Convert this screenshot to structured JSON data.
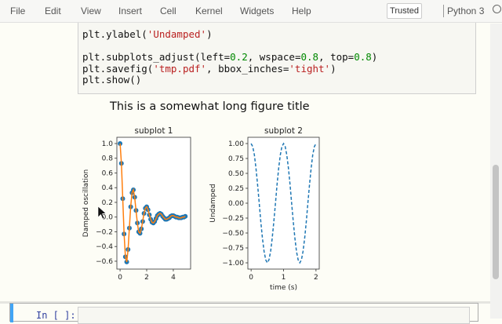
{
  "menubar": {
    "items": [
      "File",
      "Edit",
      "View",
      "Insert",
      "Cell",
      "Kernel",
      "Widgets",
      "Help"
    ],
    "trusted_label": "Trusted",
    "kernel_name": "Python 3"
  },
  "code_cell": {
    "lines": [
      [
        {
          "t": "plt.ylabel("
        },
        {
          "t": "'Undamped'",
          "c": "s"
        },
        {
          "t": ")"
        }
      ],
      [],
      [
        {
          "t": "plt.subplots_adjust(left="
        },
        {
          "t": "0.2",
          "c": "n"
        },
        {
          "t": ", wspace="
        },
        {
          "t": "0.8",
          "c": "n"
        },
        {
          "t": ", top="
        },
        {
          "t": "0.8",
          "c": "n"
        },
        {
          "t": ")"
        }
      ],
      [
        {
          "t": "plt.savefig("
        },
        {
          "t": "'tmp.pdf'",
          "c": "s"
        },
        {
          "t": ", bbox_inches="
        },
        {
          "t": "'tight'",
          "c": "s"
        },
        {
          "t": ")"
        }
      ],
      [
        {
          "t": "plt.show()"
        }
      ]
    ]
  },
  "new_cell": {
    "prompt": "In [ ]:"
  },
  "figure_title": "This is a somewhat long figure title",
  "chart_data": [
    {
      "type": "line",
      "title": "subplot 1",
      "xlabel": "",
      "ylabel": "Damped oscillation",
      "xlim": [
        -0.24,
        5.3
      ],
      "ylim": [
        -0.707,
        1.085
      ],
      "xticks": [
        0,
        2,
        4
      ],
      "yticks": [
        1.0,
        0.8,
        0.6,
        0.4,
        0.2,
        0.0,
        -0.2,
        -0.4,
        -0.6
      ],
      "ytick_labels": [
        "1.0",
        "0.8",
        "0.6",
        "0.4",
        "0.2",
        "0.0",
        "−0.2",
        "−0.4",
        "−0.6"
      ],
      "markers": true,
      "line_color": "#ff7f0e",
      "marker_color": "#1f77b4",
      "x_start": 0,
      "x_step": 0.1,
      "values": [
        1.0,
        0.73,
        0.25,
        -0.23,
        -0.54,
        -0.61,
        -0.44,
        -0.15,
        0.14,
        0.33,
        0.37,
        0.27,
        0.09,
        -0.08,
        -0.2,
        -0.22,
        -0.16,
        -0.06,
        0.05,
        0.12,
        0.14,
        0.1,
        0.03,
        -0.03,
        -0.07,
        -0.08,
        -0.06,
        -0.02,
        0.02,
        0.04,
        0.05,
        0.04,
        0.01,
        -0.01,
        -0.03,
        -0.03,
        -0.02,
        -0.01,
        0.01,
        0.02,
        0.02,
        0.01,
        0.0,
        0.0,
        -0.01,
        -0.01,
        -0.01,
        0.0,
        0.0,
        0.01
      ]
    },
    {
      "type": "line",
      "title": "subplot 2",
      "xlabel": "time (s)",
      "ylabel": "Undamped",
      "xlim": [
        -0.1,
        2.1
      ],
      "ylim": [
        -1.105,
        1.105
      ],
      "xticks": [
        0,
        1,
        2
      ],
      "yticks": [
        1.0,
        0.75,
        0.5,
        0.25,
        0.0,
        -0.25,
        -0.5,
        -0.75,
        -1.0
      ],
      "ytick_labels": [
        "1.00",
        "0.75",
        "0.50",
        "0.25",
        "0.00",
        "−0.25",
        "−0.50",
        "−0.75",
        "−1.00"
      ],
      "markers": false,
      "dashed": true,
      "line_color": "#1f77b4",
      "x_start": 0,
      "x_step": 0.05,
      "values": [
        1,
        0.95,
        0.81,
        0.59,
        0.31,
        0,
        -0.31,
        -0.59,
        -0.81,
        -0.95,
        -1,
        -0.95,
        -0.81,
        -0.59,
        -0.31,
        0,
        0.31,
        0.59,
        0.81,
        0.95,
        1,
        0.95,
        0.81,
        0.59,
        0.31,
        0,
        -0.31,
        -0.59,
        -0.81,
        -0.95,
        -1,
        -0.95,
        -0.81,
        -0.59,
        -0.31,
        0,
        0.31,
        0.59,
        0.81,
        0.95,
        1
      ]
    }
  ]
}
